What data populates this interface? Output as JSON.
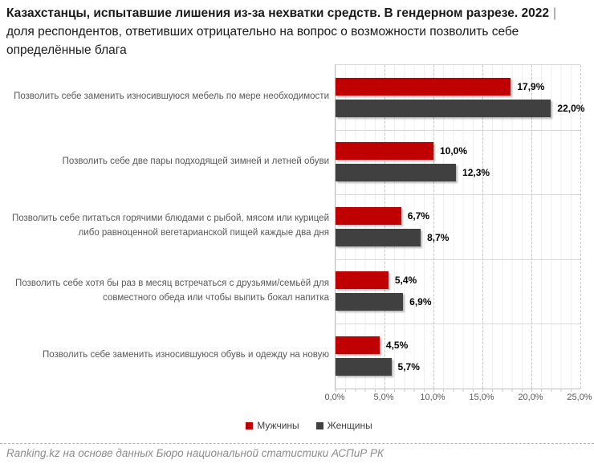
{
  "title": {
    "bold": "Казахстанцы, испытавшие лишения из-за нехватки средств. В гендерном разрезе. 2022",
    "separator": "|",
    "subtitle": "доля респондентов, ответивших отрицательно на вопрос о возможности позволить себе определённые блага"
  },
  "chart_data": {
    "type": "bar",
    "orientation": "horizontal",
    "categories": [
      "Позволить себе заменить износившуюся мебель по мере необходимости",
      "Позволить себе две пары подходящей зимней и летней обуви",
      "Позволить себе питаться горячими блюдами с рыбой, мясом или курицей либо равноценной вегетарианской пищей каждые два дня",
      "Позволить себе хотя бы раз в месяц встречаться с друзьями/семьёй для совместного обеда или чтобы выпить бокал напитка",
      "Позволить себе заменить износившуюся обувь и одежду на новую"
    ],
    "series": [
      {
        "name": "Мужчины",
        "color": "#c00000",
        "values": [
          17.9,
          10.0,
          6.7,
          5.4,
          4.5
        ],
        "labels": [
          "17,9%",
          "10,0%",
          "6,7%",
          "5,4%",
          "4,5%"
        ]
      },
      {
        "name": "Женщины",
        "color": "#404040",
        "values": [
          22.0,
          12.3,
          8.7,
          6.9,
          5.7
        ],
        "labels": [
          "22,0%",
          "12,3%",
          "8,7%",
          "6,9%",
          "5,7%"
        ]
      }
    ],
    "xlim": [
      0,
      25
    ],
    "x_tick_labels": [
      "0,0%",
      "5,0%",
      "10,0%",
      "15,0%",
      "20,0%",
      "25,0%"
    ],
    "grid": {
      "minor_interval_pct": 1,
      "minor_style": "solid",
      "major_interval_pct": 5,
      "major_style": "dashed"
    },
    "legend_position": "bottom-center",
    "value_labels_shown": true
  },
  "footer": {
    "source": "Ranking.kz на основе данных Бюро национальной статистики АСПиР РК"
  },
  "colors": {
    "men_bar": "#c00000",
    "women_bar": "#404040",
    "value_label": "#000000",
    "category_label": "#595959",
    "axis_label": "#595959",
    "title_text": "#1a1a1a",
    "footer_text": "#8c8c8c"
  }
}
